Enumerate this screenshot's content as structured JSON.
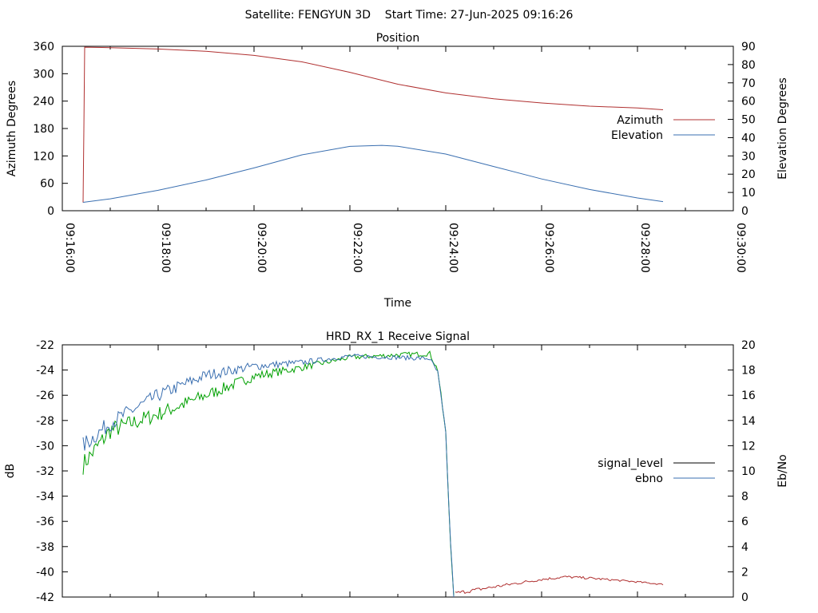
{
  "header": {
    "title": "Satellite: FENGYUN 3D    Start Time: 27-Jun-2025 09:16:26"
  },
  "chart_data": [
    {
      "type": "line",
      "title": "Position",
      "xlabel": "Time",
      "ylabel": "Azimuth Degrees",
      "y2label": "Elevation Degrees",
      "xlim": [
        "09:16:00",
        "09:30:00"
      ],
      "ylim": [
        0,
        360
      ],
      "y2lim": [
        0,
        90
      ],
      "xticks": [
        "09:16:00",
        "09:18:00",
        "09:20:00",
        "09:22:00",
        "09:24:00",
        "09:26:00",
        "09:28:00",
        "09:30:00"
      ],
      "yticks": [
        "0",
        "60",
        "120",
        "180",
        "240",
        "300",
        "360"
      ],
      "y2ticks": [
        "0",
        "10",
        "20",
        "30",
        "40",
        "50",
        "60",
        "70",
        "80",
        "90"
      ],
      "grid": false,
      "legend": "right",
      "series": [
        {
          "name": "Azimuth",
          "axis": "y",
          "color": "#b03030",
          "points": [
            [
              "09:16:26",
              18
            ],
            [
              "09:16:27",
              180
            ],
            [
              "09:16:28",
              358
            ],
            [
              "09:17:00",
              357
            ],
            [
              "09:18:00",
              354
            ],
            [
              "09:19:00",
              349
            ],
            [
              "09:20:00",
              340
            ],
            [
              "09:21:00",
              326
            ],
            [
              "09:22:00",
              303
            ],
            [
              "09:23:00",
              277
            ],
            [
              "09:24:00",
              258
            ],
            [
              "09:25:00",
              245
            ],
            [
              "09:26:00",
              236
            ],
            [
              "09:27:00",
              229
            ],
            [
              "09:28:00",
              225
            ],
            [
              "09:28:32",
              221
            ]
          ]
        },
        {
          "name": "Elevation",
          "axis": "y2",
          "color": "#3a6fb0",
          "points": [
            [
              "09:16:26",
              4.6
            ],
            [
              "09:17:00",
              6.5
            ],
            [
              "09:18:00",
              11.2
            ],
            [
              "09:19:00",
              16.8
            ],
            [
              "09:20:00",
              23.4
            ],
            [
              "09:21:00",
              30.6
            ],
            [
              "09:22:00",
              35.2
            ],
            [
              "09:22:40",
              35.8
            ],
            [
              "09:23:00",
              35.3
            ],
            [
              "09:24:00",
              31.0
            ],
            [
              "09:25:00",
              24.2
            ],
            [
              "09:26:00",
              17.4
            ],
            [
              "09:27:00",
              11.6
            ],
            [
              "09:28:00",
              7.0
            ],
            [
              "09:28:32",
              5.0
            ]
          ]
        }
      ]
    },
    {
      "type": "line",
      "title": "HRD_RX_1 Receive Signal",
      "xlabel": "",
      "ylabel": "dB",
      "y2label": "Eb/No",
      "xlim": [
        "09:16:00",
        "09:30:00"
      ],
      "ylim": [
        -42,
        -22
      ],
      "y2lim": [
        0,
        20
      ],
      "yticks": [
        "-22",
        "-24",
        "-26",
        "-28",
        "-30",
        "-32",
        "-34",
        "-36",
        "-38",
        "-40",
        "-42"
      ],
      "y2ticks": [
        "0",
        "2",
        "4",
        "6",
        "8",
        "10",
        "12",
        "14",
        "16",
        "18",
        "20"
      ],
      "grid": false,
      "legend": "right",
      "series": [
        {
          "name": "signal_level",
          "axis": "y",
          "color": "#000000",
          "trace_color": "#00a000",
          "noise": 0.8,
          "points": [
            [
              "09:16:26",
              -31.5
            ],
            [
              "09:17:00",
              -28.8
            ],
            [
              "09:18:00",
              -27.5
            ],
            [
              "09:19:00",
              -26.0
            ],
            [
              "09:20:00",
              -24.5
            ],
            [
              "09:21:00",
              -23.8
            ],
            [
              "09:22:00",
              -23.0
            ],
            [
              "09:23:00",
              -22.8
            ],
            [
              "09:23:40",
              -22.7
            ],
            [
              "09:23:50",
              -24.0
            ],
            [
              "09:24:00",
              -29.0
            ],
            [
              "09:24:05",
              -36.5
            ],
            [
              "09:24:10",
              -42.0
            ]
          ]
        },
        {
          "name": "ebno",
          "axis": "y2",
          "color": "#3a6fb0",
          "noise": 0.7,
          "points": [
            [
              "09:16:26",
              12.0
            ],
            [
              "09:17:00",
              13.8
            ],
            [
              "09:18:00",
              16.0
            ],
            [
              "09:19:00",
              17.6
            ],
            [
              "09:20:00",
              18.3
            ],
            [
              "09:21:00",
              18.6
            ],
            [
              "09:22:00",
              19.1
            ],
            [
              "09:23:00",
              19.0
            ],
            [
              "09:23:40",
              18.9
            ],
            [
              "09:23:50",
              17.8
            ],
            [
              "09:24:00",
              13.0
            ],
            [
              "09:24:05",
              5.5
            ],
            [
              "09:24:10",
              0.0
            ]
          ]
        },
        {
          "name": "",
          "axis": "y",
          "color": "#b03030",
          "noise": 0.15,
          "points": [
            [
              "09:24:12",
              -41.7
            ],
            [
              "09:25:00",
              -41.2
            ],
            [
              "09:26:00",
              -40.6
            ],
            [
              "09:26:30",
              -40.4
            ],
            [
              "09:27:00",
              -40.5
            ],
            [
              "09:28:00",
              -40.8
            ],
            [
              "09:28:32",
              -41.0
            ]
          ]
        }
      ]
    }
  ]
}
